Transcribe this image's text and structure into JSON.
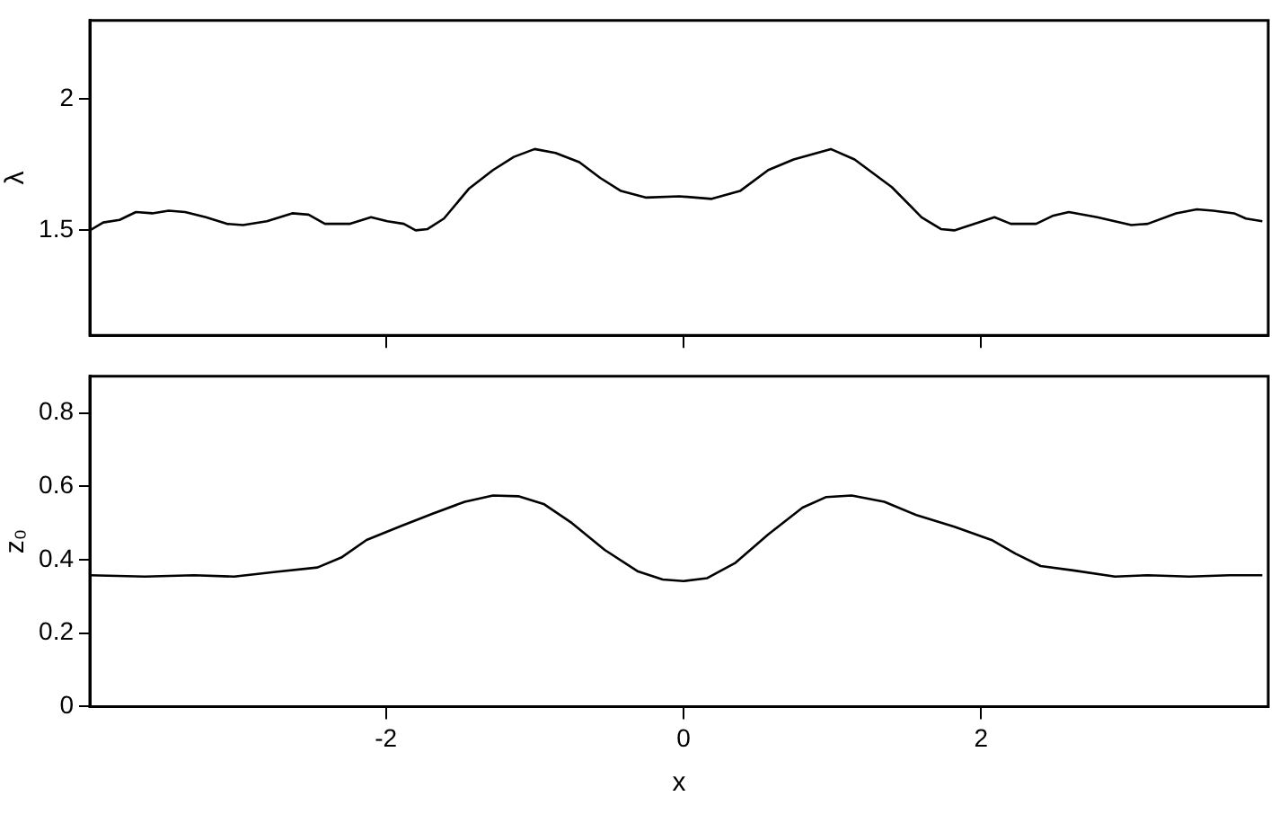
{
  "chart_data": [
    {
      "type": "line",
      "ylabel": "λ",
      "xlim": [
        -3.99,
        3.93
      ],
      "xticks": [
        -2,
        0,
        2
      ],
      "ylim": [
        1.1,
        2.3
      ],
      "yticks": [
        1.5,
        2
      ],
      "tick_labels": "y",
      "x": [
        -3.99,
        -3.9,
        -3.79,
        -3.68,
        -3.57,
        -3.46,
        -3.35,
        -3.21,
        -3.07,
        -2.96,
        -2.8,
        -2.63,
        -2.52,
        -2.41,
        -2.24,
        -2.1,
        -1.99,
        -1.88,
        -1.8,
        -1.72,
        -1.61,
        -1.44,
        -1.28,
        -1.14,
        -1.0,
        -0.86,
        -0.7,
        -0.56,
        -0.42,
        -0.25,
        -0.03,
        0.19,
        0.38,
        0.57,
        0.74,
        0.99,
        1.15,
        1.4,
        1.6,
        1.73,
        1.82,
        1.93,
        2.09,
        2.2,
        2.37,
        2.48,
        2.59,
        2.78,
        3.01,
        3.12,
        3.31,
        3.45,
        3.56,
        3.7,
        3.78,
        3.89
      ],
      "series": [
        {
          "color": "#000000",
          "values": [
            1.5,
            1.53,
            1.54,
            1.57,
            1.565,
            1.575,
            1.57,
            1.55,
            1.525,
            1.52,
            1.535,
            1.565,
            1.56,
            1.525,
            1.525,
            1.55,
            1.535,
            1.525,
            1.5,
            1.505,
            1.545,
            1.66,
            1.73,
            1.78,
            1.81,
            1.795,
            1.76,
            1.7,
            1.65,
            1.625,
            1.63,
            1.62,
            1.65,
            1.73,
            1.77,
            1.81,
            1.77,
            1.665,
            1.55,
            1.505,
            1.5,
            1.52,
            1.55,
            1.525,
            1.525,
            1.555,
            1.57,
            1.55,
            1.52,
            1.525,
            1.565,
            1.58,
            1.575,
            1.565,
            1.545,
            1.535
          ]
        }
      ]
    },
    {
      "type": "line",
      "xlabel": "x",
      "ylabel": "z₀",
      "xlim": [
        -3.99,
        3.93
      ],
      "xticks": [
        -2,
        0,
        2
      ],
      "ylim": [
        0,
        0.9
      ],
      "yticks": [
        0,
        0.2,
        0.4,
        0.6,
        0.8
      ],
      "x": [
        -3.99,
        -3.62,
        -3.29,
        -3.02,
        -2.74,
        -2.46,
        -2.3,
        -2.13,
        -1.91,
        -1.69,
        -1.47,
        -1.28,
        -1.11,
        -0.94,
        -0.75,
        -0.53,
        -0.31,
        -0.14,
        0,
        0.16,
        0.35,
        0.57,
        0.8,
        0.96,
        1.13,
        1.35,
        1.57,
        1.82,
        2.07,
        2.23,
        2.4,
        2.62,
        2.9,
        3.12,
        3.4,
        3.67,
        3.89
      ],
      "series": [
        {
          "color": "#000000",
          "values": [
            0.358,
            0.354,
            0.358,
            0.354,
            0.367,
            0.379,
            0.406,
            0.454,
            0.49,
            0.525,
            0.558,
            0.575,
            0.573,
            0.552,
            0.5,
            0.427,
            0.369,
            0.346,
            0.342,
            0.35,
            0.392,
            0.469,
            0.542,
            0.571,
            0.575,
            0.558,
            0.521,
            0.49,
            0.454,
            0.417,
            0.383,
            0.371,
            0.354,
            0.358,
            0.354,
            0.358,
            0.358
          ]
        }
      ]
    }
  ]
}
